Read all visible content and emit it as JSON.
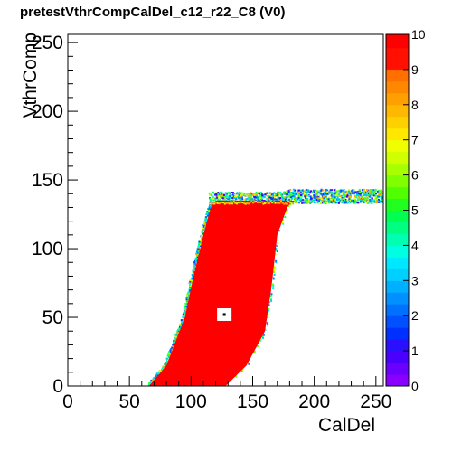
{
  "chart_data": {
    "type": "heatmap",
    "title": "pretestVthrCompCalDel_c12_r22_C8 (V0)",
    "xlabel": "CalDel",
    "ylabel": "VthrComp",
    "xlim": [
      0,
      256
    ],
    "ylim": [
      0,
      256
    ],
    "x_ticks": [
      0,
      50,
      100,
      150,
      200,
      250
    ],
    "y_ticks": [
      0,
      50,
      100,
      150,
      200,
      250
    ],
    "z_range": [
      0,
      10
    ],
    "colorbar_ticks": [
      0,
      1,
      2,
      3,
      4,
      5,
      6,
      7,
      8,
      9,
      10
    ],
    "colormap": [
      "#8a00ff",
      "#4a00ff",
      "#0040ff",
      "#007fff",
      "#00c8ff",
      "#00ffd8",
      "#00ff70",
      "#58ff00",
      "#d8ff00",
      "#ffaa00",
      "#ff0000"
    ],
    "grid": false,
    "regions": {
      "saturated_band": {
        "value": 10,
        "left_edge": [
          [
            66,
            0
          ],
          [
            80,
            15
          ],
          [
            95,
            50
          ],
          [
            102,
            80
          ],
          [
            110,
            110
          ],
          [
            116,
            130
          ],
          [
            120,
            135
          ]
        ],
        "right_edge": [
          [
            128,
            0
          ],
          [
            145,
            15
          ],
          [
            160,
            40
          ],
          [
            165,
            70
          ],
          [
            170,
            110
          ],
          [
            178,
            130
          ],
          [
            182,
            135
          ]
        ]
      },
      "plateau": {
        "x_start": 115,
        "x_end": 256,
        "y_range": [
          128,
          142
        ]
      },
      "empty_pixel": {
        "x": 127,
        "y": 52,
        "value": 0
      },
      "isolated_marker": {
        "x": 127,
        "y": 52,
        "value": 10
      }
    }
  }
}
